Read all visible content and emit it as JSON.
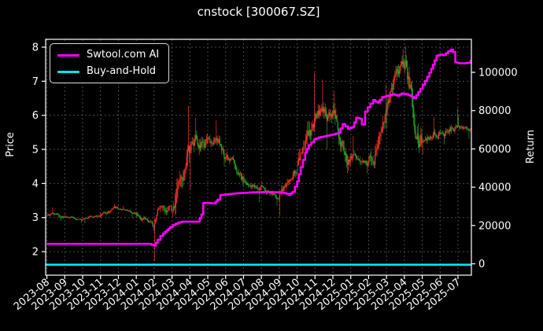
{
  "chart_data": {
    "type": "candlestick+line",
    "title": "cnstock [300067.SZ]",
    "background": "#000000",
    "grid": "on",
    "legend_position": "upper-left",
    "legend": [
      {
        "label": "Swtool.com AI",
        "color": "#ff00ff",
        "series": "strategy_return"
      },
      {
        "label": "Buy-and-Hold",
        "color": "#00e8e8",
        "series": "buy_and_hold_return"
      }
    ],
    "x_axis": {
      "range": [
        -0.07,
        23.75
      ],
      "rotation_deg": 40,
      "tick_labels": [
        "2023-08",
        "2023-09",
        "2023-10",
        "2023-11",
        "2023-12",
        "2024-01",
        "2024-02",
        "2024-03",
        "2024-04",
        "2024-05",
        "2024-06",
        "2024-07",
        "2024-08",
        "2024-09",
        "2024-10",
        "2024-11",
        "2024-12",
        "2025-01",
        "2025-02",
        "2025-03",
        "2025-04",
        "2025-05",
        "2025-06",
        "2025-07"
      ]
    },
    "y_left_axis": {
      "label": "Price",
      "range": [
        1.31,
        8.23
      ],
      "tick_labels": [
        "2",
        "3",
        "4",
        "5",
        "6",
        "7",
        "8"
      ]
    },
    "y_right_axis": {
      "label": "Return",
      "range": [
        -5950,
        117250
      ],
      "tick_labels": [
        "0",
        "20000",
        "40000",
        "60000",
        "80000",
        "100000"
      ]
    },
    "price_monthly_ohlc": [
      {
        "month": "2023-08",
        "o": 3.08,
        "h": 3.3,
        "l": 2.9,
        "c": 3.02,
        "days": 20
      },
      {
        "month": "2023-09",
        "o": 3.02,
        "h": 3.12,
        "l": 2.85,
        "c": 2.95,
        "days": 20
      },
      {
        "month": "2023-10",
        "o": 2.95,
        "h": 3.14,
        "l": 2.83,
        "c": 3.06,
        "days": 20
      },
      {
        "month": "2023-11",
        "o": 3.06,
        "h": 3.4,
        "l": 2.98,
        "c": 3.25,
        "days": 20
      },
      {
        "month": "2023-12",
        "o": 3.25,
        "h": 3.34,
        "l": 3.0,
        "c": 3.12,
        "days": 20
      },
      {
        "month": "2024-01",
        "o": 3.12,
        "h": 3.18,
        "l": 2.6,
        "c": 2.72,
        "days": 20
      },
      {
        "month": "2024-02",
        "o": 2.72,
        "h": 3.35,
        "l": 1.72,
        "c": 3.2,
        "days": 18
      },
      {
        "month": "2024-03",
        "o": 3.2,
        "h": 6.28,
        "l": 3.02,
        "c": 4.9,
        "days": 20
      },
      {
        "month": "2024-04",
        "o": 4.9,
        "h": 5.92,
        "l": 3.82,
        "c": 5.3,
        "days": 20
      },
      {
        "month": "2024-05",
        "o": 5.3,
        "h": 5.85,
        "l": 4.5,
        "c": 4.75,
        "days": 20
      },
      {
        "month": "2024-06",
        "o": 4.75,
        "h": 4.95,
        "l": 3.92,
        "c": 4.12,
        "days": 20
      },
      {
        "month": "2024-07",
        "o": 4.12,
        "h": 4.25,
        "l": 3.45,
        "c": 3.9,
        "days": 20
      },
      {
        "month": "2024-08",
        "o": 3.9,
        "h": 4.05,
        "l": 3.35,
        "c": 3.55,
        "days": 20
      },
      {
        "month": "2024-09",
        "o": 3.55,
        "h": 4.4,
        "l": 3.05,
        "c": 4.3,
        "days": 19
      },
      {
        "month": "2024-10",
        "o": 4.55,
        "h": 7.25,
        "l": 4.3,
        "c": 5.9,
        "days": 18
      },
      {
        "month": "2024-11",
        "o": 5.9,
        "h": 7.05,
        "l": 5.0,
        "c": 6.1,
        "days": 20
      },
      {
        "month": "2024-12",
        "o": 6.1,
        "h": 6.7,
        "l": 4.3,
        "c": 4.8,
        "days": 20
      },
      {
        "month": "2025-01",
        "o": 4.8,
        "h": 5.4,
        "l": 4.3,
        "c": 4.65,
        "days": 18
      },
      {
        "month": "2025-02",
        "o": 4.65,
        "h": 6.9,
        "l": 4.45,
        "c": 6.2,
        "days": 18
      },
      {
        "month": "2025-03",
        "o": 6.2,
        "h": 7.95,
        "l": 5.6,
        "c": 7.4,
        "days": 20
      },
      {
        "month": "2025-04",
        "o": 7.4,
        "h": 8.02,
        "l": 4.9,
        "c": 5.2,
        "days": 20
      },
      {
        "month": "2025-05",
        "o": 5.2,
        "h": 5.95,
        "l": 4.85,
        "c": 5.5,
        "days": 19
      },
      {
        "month": "2025-06",
        "o": 5.5,
        "h": 6.2,
        "l": 5.15,
        "c": 5.7,
        "days": 20
      },
      {
        "month": "2025-07",
        "o": 5.7,
        "h": 6.0,
        "l": 5.3,
        "c": 5.62,
        "days": 14
      }
    ],
    "strategy_return_keypoints": [
      [
        0,
        10400
      ],
      [
        1,
        10400
      ],
      [
        2,
        10400
      ],
      [
        3,
        10400
      ],
      [
        4,
        10400
      ],
      [
        5,
        10400
      ],
      [
        5.7,
        10400
      ],
      [
        6.0,
        9500
      ],
      [
        6.2,
        12500
      ],
      [
        6.35,
        14500
      ],
      [
        6.5,
        15800
      ],
      [
        6.7,
        17500
      ],
      [
        6.9,
        19200
      ],
      [
        7.05,
        20300
      ],
      [
        7.35,
        21500
      ],
      [
        7.55,
        22000
      ],
      [
        8.45,
        22000
      ],
      [
        8.65,
        25800
      ],
      [
        8.75,
        31800
      ],
      [
        9.35,
        31600
      ],
      [
        9.55,
        33500
      ],
      [
        9.7,
        35900
      ],
      [
        10.1,
        36300
      ],
      [
        10.7,
        36900
      ],
      [
        11.5,
        37300
      ],
      [
        12.3,
        37500
      ],
      [
        13.0,
        37300
      ],
      [
        13.25,
        37000
      ],
      [
        13.55,
        36000
      ],
      [
        13.75,
        37600
      ],
      [
        14.0,
        43000
      ],
      [
        14.2,
        50500
      ],
      [
        14.45,
        58000
      ],
      [
        14.65,
        62000
      ],
      [
        14.95,
        65000
      ],
      [
        15.2,
        66000
      ],
      [
        15.45,
        66400
      ],
      [
        15.7,
        67000
      ],
      [
        16.0,
        67600
      ],
      [
        16.3,
        68400
      ],
      [
        16.55,
        73000
      ],
      [
        16.85,
        70500
      ],
      [
        17.1,
        71500
      ],
      [
        17.3,
        76300
      ],
      [
        17.5,
        75800
      ],
      [
        17.62,
        72800
      ],
      [
        17.8,
        79500
      ],
      [
        17.95,
        81800
      ],
      [
        18.25,
        85500
      ],
      [
        18.5,
        84200
      ],
      [
        18.75,
        87000
      ],
      [
        19.0,
        87600
      ],
      [
        19.35,
        88600
      ],
      [
        19.6,
        87800
      ],
      [
        19.85,
        89000
      ],
      [
        20.1,
        88600
      ],
      [
        20.35,
        87600
      ],
      [
        20.55,
        86500
      ],
      [
        20.9,
        91400
      ],
      [
        21.15,
        95500
      ],
      [
        21.4,
        99800
      ],
      [
        21.6,
        104000
      ],
      [
        21.8,
        108600
      ],
      [
        22.0,
        109300
      ],
      [
        22.2,
        109000
      ],
      [
        22.45,
        111000
      ],
      [
        22.6,
        111900
      ],
      [
        22.72,
        110600
      ],
      [
        22.85,
        105200
      ],
      [
        23.1,
        104700
      ],
      [
        23.35,
        104700
      ],
      [
        23.55,
        105000
      ],
      [
        23.72,
        106500
      ]
    ],
    "buy_and_hold_return": -500,
    "colors": {
      "up_candle": "#f53328",
      "down_candle": "#28a128",
      "strategy_line": "#ff00ff",
      "buyhold_line": "#00e8e8",
      "frame": "#ffffff",
      "grid": "#4a4a4a",
      "text": "#ffffff"
    }
  }
}
